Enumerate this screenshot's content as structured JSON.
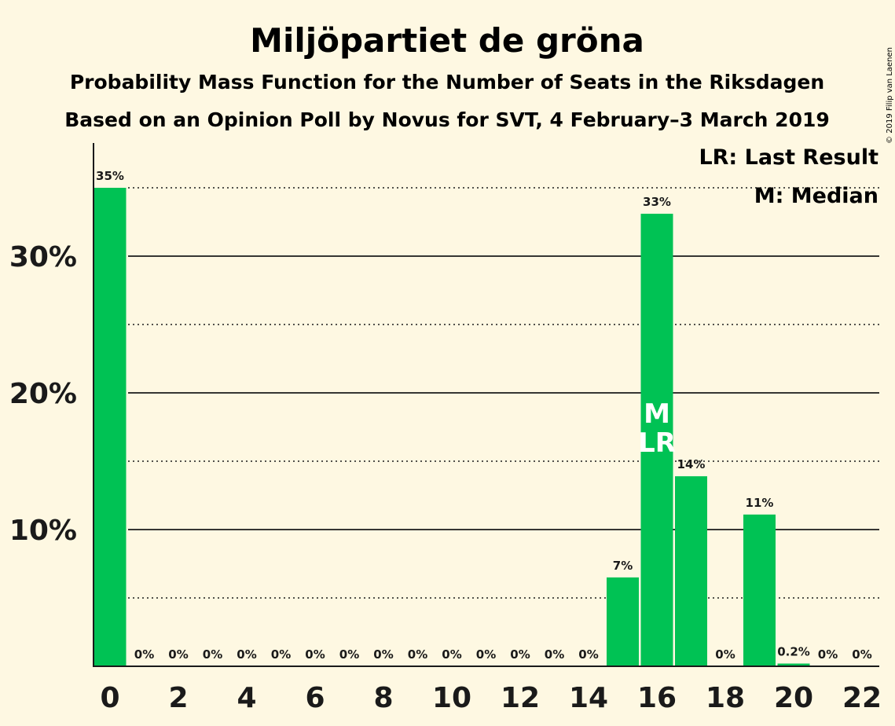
{
  "title": "Miljöpartiet de gröna",
  "subtitle": "Probability Mass Function for the Number of Seats in the Riksdagen",
  "subtitle2": "Based on an Opinion Poll by Novus for SVT, 4 February–3 March 2019",
  "copyright": "© 2019 Filip van Laenen",
  "legend": {
    "lr": "LR: Last Result",
    "m": "M: Median"
  },
  "colors": {
    "bar": "#00c254",
    "background": "#fef8e2",
    "text": "#1a1a1a"
  },
  "chart_data": {
    "type": "bar",
    "x": [
      0,
      1,
      2,
      3,
      4,
      5,
      6,
      7,
      8,
      9,
      10,
      11,
      12,
      13,
      14,
      15,
      16,
      17,
      18,
      19,
      20,
      21,
      22
    ],
    "values": [
      35,
      0,
      0,
      0,
      0,
      0,
      0,
      0,
      0,
      0,
      0,
      0,
      0,
      0,
      0,
      6.5,
      33.1,
      13.9,
      0,
      11.1,
      0.2,
      0,
      0
    ],
    "labels": [
      "35%",
      "0%",
      "0%",
      "0%",
      "0%",
      "0%",
      "0%",
      "0%",
      "0%",
      "0%",
      "0%",
      "0%",
      "0%",
      "0%",
      "0%",
      "7%",
      "33%",
      "14%",
      "0%",
      "11%",
      "0.2%",
      "0%",
      "0%"
    ],
    "xticks": [
      0,
      2,
      4,
      6,
      8,
      10,
      12,
      14,
      16,
      18,
      20,
      22
    ],
    "yticks": [
      10,
      20,
      30
    ],
    "ytick_labels": [
      "10%",
      "20%",
      "30%"
    ],
    "minor_gridlines": [
      5,
      15,
      25,
      35
    ],
    "ylim": [
      0,
      38
    ],
    "median": 16,
    "last_result": 16,
    "median_label": "M",
    "last_result_label": "LR",
    "legend_position": "top-right"
  }
}
